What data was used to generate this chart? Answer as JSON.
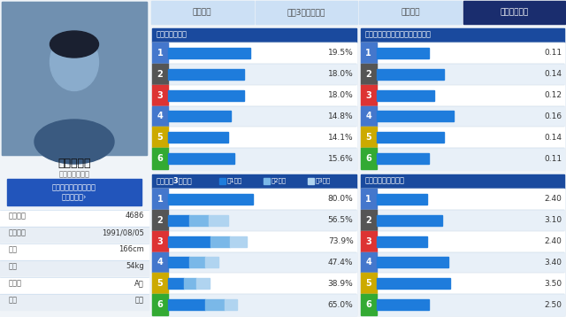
{
  "tab_labels": [
    "出場予定",
    "過去3節成績、他",
    "期別成績",
    "コース別成績"
  ],
  "active_tab": 3,
  "lane_colors": [
    "#4477cc",
    "#555555",
    "#dd3333",
    "#4477cc",
    "#ccaa00",
    "#33aa33"
  ],
  "section1_title": "コース別進入率",
  "section1_values": [
    19.5,
    18.0,
    18.0,
    14.8,
    14.1,
    15.6
  ],
  "section1_labels": [
    "19.5%",
    "18.0%",
    "18.0%",
    "14.8%",
    "14.1%",
    "15.6%"
  ],
  "section1_max": 25.0,
  "section2_title": "コース別平均スタートタイミング",
  "section2_values": [
    0.11,
    0.14,
    0.12,
    0.16,
    0.14,
    0.11
  ],
  "section2_labels": [
    "0.11",
    "0.14",
    "0.12",
    "0.16",
    "0.14",
    "0.11"
  ],
  "section2_max": 0.22,
  "section3_title": "コース別3連対率",
  "section3_legend": [
    "1着率",
    "2着率",
    "3着率"
  ],
  "section3_v1": [
    80.0,
    20.0,
    40.0,
    20.0,
    15.0,
    35.0
  ],
  "section3_v2": [
    0,
    18.0,
    18.0,
    15.0,
    12.0,
    18.0
  ],
  "section3_v3": [
    0,
    18.5,
    15.9,
    12.4,
    11.9,
    12.0
  ],
  "section3_labels": [
    "80.0%",
    "56.5%",
    "73.9%",
    "47.4%",
    "38.9%",
    "65.0%"
  ],
  "section3_max": 100.0,
  "section4_title": "コース別スタート順",
  "section4_values": [
    2.4,
    3.1,
    2.4,
    3.4,
    3.5,
    2.5
  ],
  "section4_labels": [
    "2.40",
    "3.10",
    "2.40",
    "3.40",
    "3.50",
    "2.50"
  ],
  "section4_max": 5.0,
  "row_bg1": "#ffffff",
  "row_bg2": "#e8f0f8",
  "person_name": "丸野　一樹",
  "person_kana": "マルノ　カズキ",
  "person_info": [
    [
      "登録番号",
      "4686"
    ],
    [
      "生年月日",
      "1991/08/05"
    ],
    [
      "身長",
      "166cm"
    ],
    [
      "体重",
      "54kg"
    ],
    [
      "血液型",
      "A型"
    ],
    [
      "支部",
      "滋賀"
    ]
  ]
}
